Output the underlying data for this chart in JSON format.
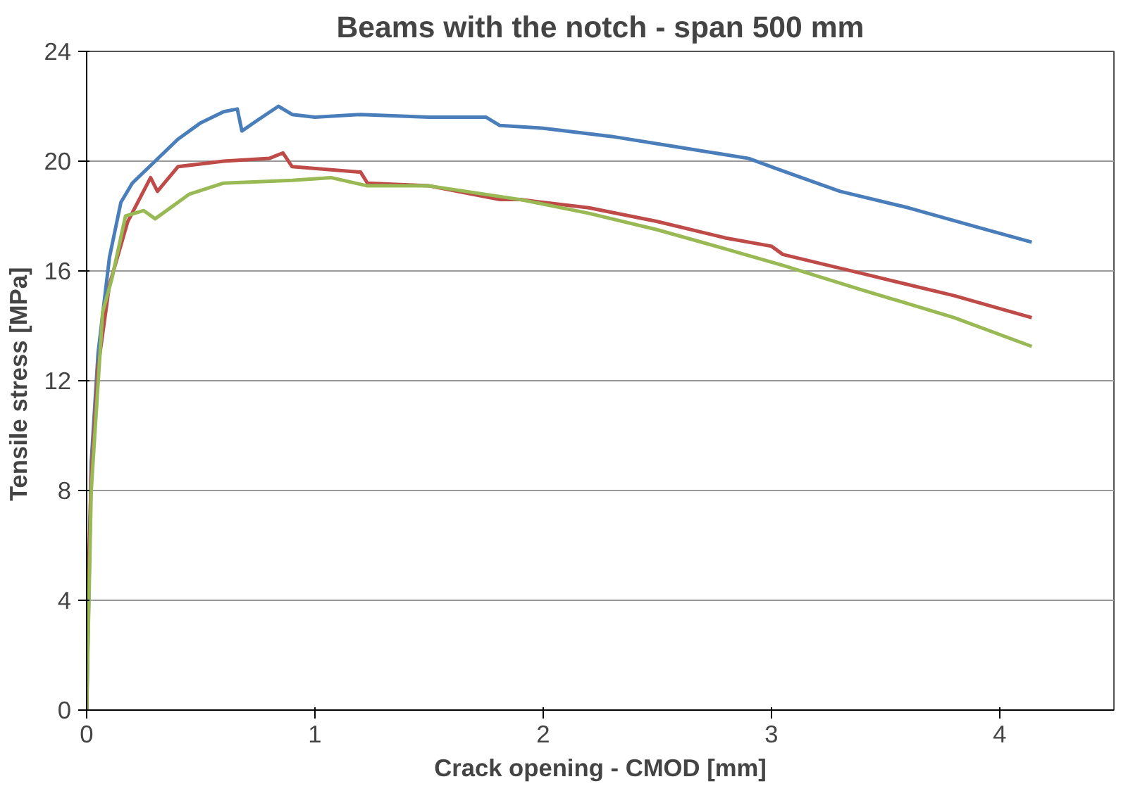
{
  "chart_data": {
    "type": "line",
    "title": "Beams with the notch - span 500 mm",
    "xlabel": "Crack opening - CMOD [mm]",
    "ylabel": "Tensile stress  [MPa]",
    "xlim": [
      0,
      4.5
    ],
    "ylim": [
      0,
      24
    ],
    "xticks": [
      0,
      1,
      2,
      3,
      4
    ],
    "yticks": [
      0,
      4,
      8,
      12,
      16,
      20,
      24
    ],
    "grid": "y",
    "marker": "none",
    "line_style": "solid",
    "series": [
      {
        "color": "#4a7ebb",
        "x": [
          0,
          0.02,
          0.05,
          0.1,
          0.15,
          0.2,
          0.3,
          0.4,
          0.5,
          0.6,
          0.66,
          0.68,
          0.75,
          0.84,
          0.9,
          1.0,
          1.2,
          1.5,
          1.75,
          1.81,
          2.0,
          2.3,
          2.6,
          2.9,
          3.03,
          3.3,
          3.6,
          3.9,
          4.14
        ],
        "values": [
          0,
          9,
          13,
          16.5,
          18.5,
          19.2,
          20,
          20.8,
          21.4,
          21.8,
          21.9,
          21.1,
          21.5,
          22,
          21.7,
          21.6,
          21.7,
          21.6,
          21.6,
          21.3,
          21.2,
          20.9,
          20.5,
          20.1,
          19.7,
          18.9,
          18.3,
          17.6,
          17.05
        ]
      },
      {
        "color": "#be4b48",
        "x": [
          0,
          0.005,
          0.02,
          0.05,
          0.1,
          0.18,
          0.28,
          0.31,
          0.4,
          0.6,
          0.8,
          0.86,
          0.9,
          1.2,
          1.23,
          1.5,
          1.81,
          1.9,
          2.2,
          2.5,
          2.8,
          3.0,
          3.05,
          3.4,
          3.8,
          4.14
        ],
        "values": [
          0,
          4,
          8.5,
          12.5,
          15.5,
          17.8,
          19.4,
          18.9,
          19.8,
          20,
          20.1,
          20.3,
          19.8,
          19.6,
          19.2,
          19.1,
          18.6,
          18.6,
          18.3,
          17.8,
          17.2,
          16.9,
          16.6,
          15.9,
          15.1,
          14.3
        ]
      },
      {
        "color": "#98b954",
        "x": [
          0,
          0.005,
          0.02,
          0.07,
          0.11,
          0.17,
          0.25,
          0.3,
          0.45,
          0.6,
          0.9,
          1.07,
          1.23,
          1.5,
          1.9,
          2.2,
          2.5,
          2.8,
          3.05,
          3.4,
          3.8,
          4.14
        ],
        "values": [
          0,
          2,
          8,
          14.5,
          15.7,
          18.0,
          18.2,
          17.9,
          18.8,
          19.2,
          19.3,
          19.4,
          19.1,
          19.1,
          18.6,
          18.1,
          17.5,
          16.8,
          16.2,
          15.3,
          14.3,
          13.25
        ]
      }
    ]
  }
}
